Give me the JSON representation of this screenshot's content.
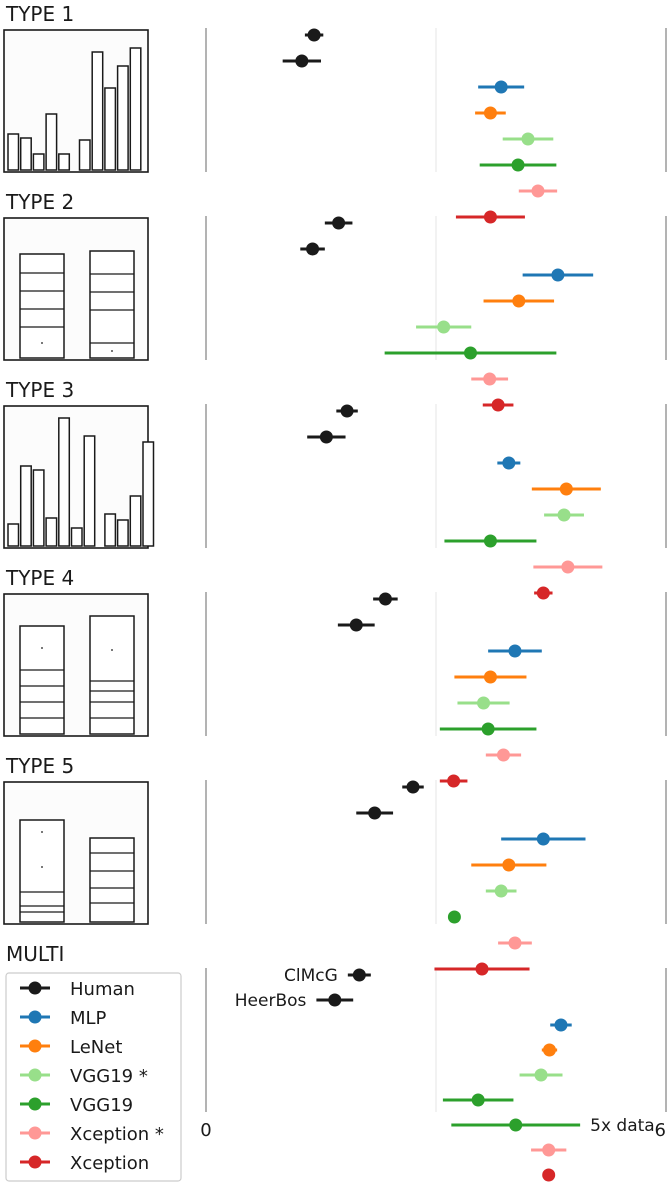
{
  "chart_data": {
    "type": "scatter",
    "description_mode": "point estimates with horizontal error bars, grouped by task type",
    "x_tick_labels": [
      "0",
      "6"
    ],
    "xlim": [
      0,
      6
    ],
    "grid": "vertical lines at 0, 3, 6",
    "colors": {
      "Human": "#1a1a1a",
      "MLP": "#1f77b4",
      "LeNet": "#ff7f0e",
      "VGG19 *": "#98df8a",
      "VGG19": "#2ca02c",
      "Xception *": "#ff9896",
      "Xception": "#d62728"
    },
    "legend": {
      "placement": "bottom-left",
      "entries": [
        "Human",
        "MLP",
        "LeNet",
        "VGG19 *",
        "VGG19",
        "Xception *",
        "Xception"
      ]
    },
    "panels": [
      {
        "title": "TYPE 1",
        "thumbnail": "bars",
        "rows": [
          {
            "series": "Human",
            "x": 1.41,
            "err": 0.12
          },
          {
            "series": "Human",
            "x": 1.25,
            "err": 0.25
          },
          {
            "series": "MLP",
            "x": 3.85,
            "err": 0.3
          },
          {
            "series": "LeNet",
            "x": 3.71,
            "err": 0.2
          },
          {
            "series": "VGG19 *",
            "x": 4.2,
            "err": 0.33
          },
          {
            "series": "VGG19",
            "x": 4.07,
            "err": 0.5
          },
          {
            "series": "Xception *",
            "x": 4.33,
            "err": 0.25
          },
          {
            "series": "Xception",
            "x": 3.71,
            "err": 0.45
          }
        ]
      },
      {
        "title": "TYPE 2",
        "thumbnail": "stacked",
        "rows": [
          {
            "series": "Human",
            "x": 1.73,
            "err": 0.18
          },
          {
            "series": "Human",
            "x": 1.39,
            "err": 0.16
          },
          {
            "series": "MLP",
            "x": 4.59,
            "err": 0.46
          },
          {
            "series": "LeNet",
            "x": 4.08,
            "err": 0.46
          },
          {
            "series": "VGG19 *",
            "x": 3.1,
            "err": 0.36
          },
          {
            "series": "VGG19",
            "x": 3.45,
            "err": 1.12
          },
          {
            "series": "Xception *",
            "x": 3.7,
            "err": 0.24
          },
          {
            "series": "Xception",
            "x": 3.81,
            "err": 0.2
          }
        ]
      },
      {
        "title": "TYPE 3",
        "thumbnail": "bars",
        "rows": [
          {
            "series": "Human",
            "x": 1.84,
            "err": 0.14
          },
          {
            "series": "Human",
            "x": 1.57,
            "err": 0.25
          },
          {
            "series": "MLP",
            "x": 3.95,
            "err": 0.15
          },
          {
            "series": "LeNet",
            "x": 4.7,
            "err": 0.45
          },
          {
            "series": "VGG19 *",
            "x": 4.67,
            "err": 0.26
          },
          {
            "series": "VGG19",
            "x": 3.71,
            "err": 0.6
          },
          {
            "series": "Xception *",
            "x": 4.72,
            "err": 0.45
          },
          {
            "series": "Xception",
            "x": 4.4,
            "err": 0.12
          }
        ]
      },
      {
        "title": "TYPE 4",
        "thumbnail": "stacked",
        "rows": [
          {
            "series": "Human",
            "x": 2.34,
            "err": 0.16
          },
          {
            "series": "Human",
            "x": 1.96,
            "err": 0.24
          },
          {
            "series": "MLP",
            "x": 4.03,
            "err": 0.35
          },
          {
            "series": "LeNet",
            "x": 3.71,
            "err": 0.47
          },
          {
            "series": "VGG19 *",
            "x": 3.62,
            "err": 0.34
          },
          {
            "series": "VGG19",
            "x": 3.68,
            "err": 0.63
          },
          {
            "series": "Xception *",
            "x": 3.88,
            "err": 0.23
          },
          {
            "series": "Xception",
            "x": 3.23,
            "err": 0.18
          }
        ]
      },
      {
        "title": "TYPE 5",
        "thumbnail": "stacked",
        "rows": [
          {
            "series": "Human",
            "x": 2.7,
            "err": 0.14
          },
          {
            "series": "Human",
            "x": 2.2,
            "err": 0.24
          },
          {
            "series": "MLP",
            "x": 4.4,
            "err": 0.55
          },
          {
            "series": "LeNet",
            "x": 3.95,
            "err": 0.49
          },
          {
            "series": "VGG19 *",
            "x": 3.85,
            "err": 0.2
          },
          {
            "series": "VGG19",
            "x": 3.24,
            "err": 0
          },
          {
            "series": "Xception *",
            "x": 4.03,
            "err": 0.22
          },
          {
            "series": "Xception",
            "x": 3.6,
            "err": 0.62
          }
        ]
      },
      {
        "title": "MULTI",
        "thumbnail": "legend",
        "rows": [
          {
            "series": "Human",
            "x": 2.0,
            "err": 0.15,
            "label": "ClMcG"
          },
          {
            "series": "Human",
            "x": 1.68,
            "err": 0.24,
            "label": "HeerBos"
          },
          {
            "series": "MLP",
            "x": 4.63,
            "err": 0.14
          },
          {
            "series": "LeNet",
            "x": 4.48,
            "err": 0.1
          },
          {
            "series": "VGG19 *",
            "x": 4.37,
            "err": 0.28
          },
          {
            "series": "VGG19",
            "x": 3.55,
            "err": 0.46
          },
          {
            "series": "VGG19",
            "x": 4.04,
            "err": 0.84,
            "label": "5x data"
          },
          {
            "series": "Xception *",
            "x": 4.47,
            "err": 0.23
          },
          {
            "series": "Xception",
            "x": 4.47,
            "err": 0
          }
        ]
      }
    ]
  }
}
